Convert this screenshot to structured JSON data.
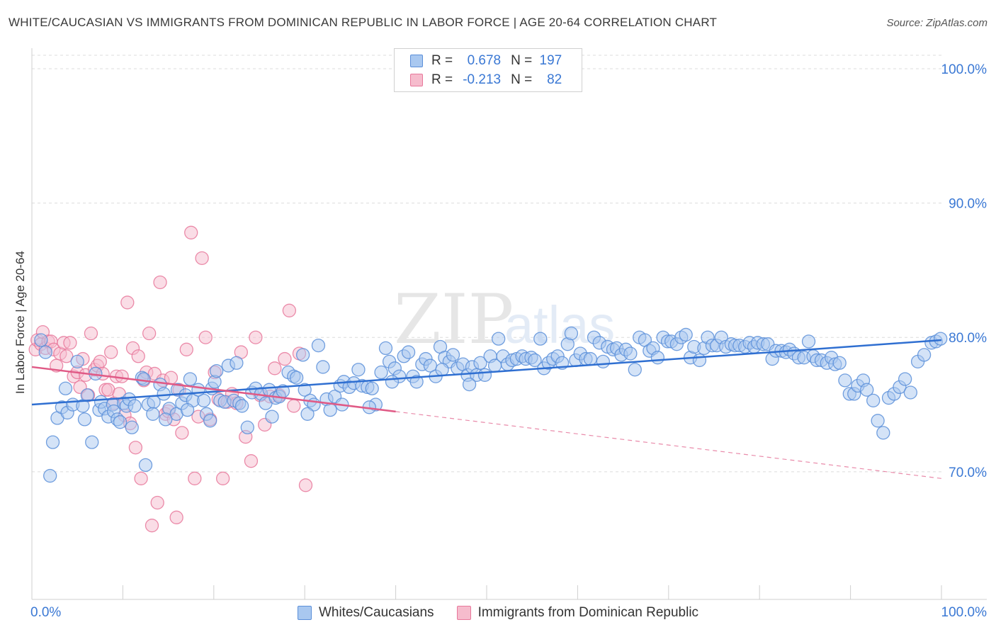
{
  "header": {
    "title": "WHITE/CAUCASIAN VS IMMIGRANTS FROM DOMINICAN REPUBLIC IN LABOR FORCE | AGE 20-64 CORRELATION CHART",
    "source": "Source: ZipAtlas.com"
  },
  "watermark": {
    "text_zip": "ZIP",
    "text_atlas": "atlas"
  },
  "legend": {
    "r_label": "R =",
    "n_label": "N =",
    "rows": [
      {
        "r": "0.678",
        "n": "197"
      },
      {
        "r": "-0.213",
        "n": "82"
      }
    ]
  },
  "colors": {
    "blue_fill": "#a9c8f0",
    "blue_edge": "#5b8fd9",
    "blue_line": "#2f6fd1",
    "pink_fill": "#f6bccd",
    "pink_edge": "#e8789b",
    "pink_line": "#e05a86",
    "tick_text": "#3a78d4",
    "grid": "#dcdcdc"
  },
  "chart_data": {
    "type": "scatter",
    "title": "WHITE/CAUCASIAN VS IMMIGRANTS FROM DOMINICAN REPUBLIC IN LABOR FORCE | AGE 20-64 CORRELATION CHART",
    "xlabel": "",
    "ylabel": "In Labor Force | Age 20-64",
    "xlim": [
      0,
      100
    ],
    "ylim": [
      60.5,
      101
    ],
    "x_tick_labels": [
      "0.0%",
      "100.0%"
    ],
    "y_ticks": [
      70,
      80,
      90,
      100
    ],
    "y_tick_labels": [
      "70.0%",
      "80.0%",
      "90.0%",
      "100.0%"
    ],
    "grid": true,
    "legend_position": "top-center",
    "series": [
      {
        "name": "Whites/Caucasians",
        "r": 0.678,
        "n": 197,
        "trend": {
          "x0": 0,
          "y0": 75.0,
          "x1": 100,
          "y1": 79.8,
          "dashed_from": null
        },
        "points": [
          [
            2,
            69.7
          ],
          [
            2.3,
            72.2
          ],
          [
            2.8,
            74
          ],
          [
            3.3,
            74.8
          ],
          [
            3.9,
            74.4
          ],
          [
            4.5,
            75
          ],
          [
            5,
            78.2
          ],
          [
            5.6,
            74.9
          ],
          [
            5.8,
            73.9
          ],
          [
            6.6,
            72.2
          ],
          [
            7,
            77.3
          ],
          [
            7.4,
            74.6
          ],
          [
            7.6,
            75.2
          ],
          [
            8,
            74.7
          ],
          [
            8.4,
            74.1
          ],
          [
            8.9,
            75
          ],
          [
            9,
            74.5
          ],
          [
            9.4,
            73.9
          ],
          [
            10.1,
            75.1
          ],
          [
            10.4,
            74.9
          ],
          [
            10.7,
            75.4
          ],
          [
            11,
            73.3
          ],
          [
            11.3,
            74.9
          ],
          [
            12.1,
            77
          ],
          [
            12.5,
            70.5
          ],
          [
            12.8,
            75
          ],
          [
            13.4,
            75.2
          ],
          [
            13.3,
            74.3
          ],
          [
            14.1,
            76.5
          ],
          [
            14.5,
            75.8
          ],
          [
            15.1,
            74.7
          ],
          [
            15.9,
            74.3
          ],
          [
            16,
            76.1
          ],
          [
            16.5,
            75.1
          ],
          [
            16.9,
            75.7
          ],
          [
            17.4,
            76.9
          ],
          [
            17.7,
            75.3
          ],
          [
            18.3,
            76.1
          ],
          [
            18.9,
            75.3
          ],
          [
            19.2,
            74.3
          ],
          [
            19.8,
            76.2
          ],
          [
            20.1,
            76.7
          ],
          [
            20.3,
            77.5
          ],
          [
            20.7,
            75.3
          ],
          [
            21.2,
            75.2
          ],
          [
            21.6,
            77.9
          ],
          [
            22.2,
            75.3
          ],
          [
            22.8,
            75.1
          ],
          [
            23.1,
            74.9
          ],
          [
            23.7,
            73.3
          ],
          [
            24.2,
            75.9
          ],
          [
            24.6,
            76.2
          ],
          [
            25.2,
            75.8
          ],
          [
            25.7,
            75.1
          ],
          [
            26.1,
            76.1
          ],
          [
            26.8,
            75.5
          ],
          [
            27.2,
            75.6
          ],
          [
            27.6,
            76
          ],
          [
            28.2,
            77.4
          ],
          [
            28.8,
            77.1
          ],
          [
            29.1,
            77
          ],
          [
            29.8,
            78.7
          ],
          [
            30,
            76.1
          ],
          [
            30.6,
            75.3
          ],
          [
            31,
            75
          ],
          [
            31.5,
            79.4
          ],
          [
            32,
            77.8
          ],
          [
            32.4,
            75.4
          ],
          [
            32.8,
            74.6
          ],
          [
            33.3,
            75.6
          ],
          [
            33.9,
            76.4
          ],
          [
            34.3,
            76.7
          ],
          [
            34.9,
            76.3
          ],
          [
            35.4,
            76.6
          ],
          [
            35.9,
            77.6
          ],
          [
            36.3,
            76.4
          ],
          [
            36.9,
            76.3
          ],
          [
            37.4,
            76.2
          ],
          [
            37.8,
            75
          ],
          [
            38.4,
            77.4
          ],
          [
            38.9,
            79.2
          ],
          [
            39.3,
            78.2
          ],
          [
            39.9,
            77.7
          ],
          [
            40.4,
            77.1
          ],
          [
            40.9,
            78.6
          ],
          [
            41.4,
            78.9
          ],
          [
            41.9,
            77.1
          ],
          [
            42.3,
            76.7
          ],
          [
            42.9,
            78
          ],
          [
            43.3,
            78.4
          ],
          [
            43.8,
            77.9
          ],
          [
            44.4,
            77.1
          ],
          [
            44.9,
            79.3
          ],
          [
            45.4,
            78.5
          ],
          [
            45.9,
            78.2
          ],
          [
            46.3,
            78.7
          ],
          [
            46.8,
            77.7
          ],
          [
            47.4,
            78
          ],
          [
            47.9,
            77.2
          ],
          [
            48.4,
            77.8
          ],
          [
            48.9,
            77.2
          ],
          [
            49.3,
            78.1
          ],
          [
            49.8,
            77.2
          ],
          [
            50.4,
            78.6
          ],
          [
            50.9,
            77.9
          ],
          [
            51.3,
            79.9
          ],
          [
            51.8,
            78.6
          ],
          [
            52.3,
            78
          ],
          [
            52.8,
            78.3
          ],
          [
            53.3,
            78.4
          ],
          [
            53.9,
            78.6
          ],
          [
            54.3,
            78.4
          ],
          [
            54.9,
            78.5
          ],
          [
            55.3,
            78.3
          ],
          [
            55.9,
            79.9
          ],
          [
            56.3,
            77.7
          ],
          [
            56.8,
            78.1
          ],
          [
            57.3,
            78.4
          ],
          [
            57.8,
            78.6
          ],
          [
            58.3,
            78.1
          ],
          [
            58.9,
            79.5
          ],
          [
            59.3,
            80.3
          ],
          [
            59.8,
            78.3
          ],
          [
            60.3,
            78.8
          ],
          [
            60.9,
            78.4
          ],
          [
            61.4,
            78.4
          ],
          [
            61.8,
            80
          ],
          [
            62.4,
            79.6
          ],
          [
            62.8,
            78.2
          ],
          [
            63.3,
            79.3
          ],
          [
            63.9,
            79.1
          ],
          [
            64.3,
            79.2
          ],
          [
            64.8,
            78.7
          ],
          [
            65.3,
            79.1
          ],
          [
            65.8,
            78.8
          ],
          [
            66.3,
            77.6
          ],
          [
            66.8,
            80
          ],
          [
            67.4,
            79.8
          ],
          [
            67.9,
            79
          ],
          [
            68.3,
            79.2
          ],
          [
            68.8,
            78.5
          ],
          [
            69.4,
            80
          ],
          [
            69.9,
            79.7
          ],
          [
            70.3,
            79.7
          ],
          [
            70.9,
            79.5
          ],
          [
            71.4,
            80
          ],
          [
            71.9,
            80.2
          ],
          [
            72.4,
            78.5
          ],
          [
            72.8,
            79.3
          ],
          [
            73.4,
            78.3
          ],
          [
            73.9,
            79.2
          ],
          [
            74.3,
            80
          ],
          [
            74.8,
            79.4
          ],
          [
            75.3,
            79.4
          ],
          [
            75.8,
            80
          ],
          [
            76.3,
            79.3
          ],
          [
            76.9,
            79.5
          ],
          [
            77.3,
            79.4
          ],
          [
            77.8,
            79.4
          ],
          [
            78.4,
            79.3
          ],
          [
            78.9,
            79.6
          ],
          [
            79.4,
            79.3
          ],
          [
            79.8,
            79.6
          ],
          [
            80.4,
            79.5
          ],
          [
            80.9,
            79.5
          ],
          [
            81.4,
            78.4
          ],
          [
            81.8,
            79
          ],
          [
            82.4,
            79
          ],
          [
            82.9,
            78.9
          ],
          [
            83.3,
            79.1
          ],
          [
            83.8,
            78.8
          ],
          [
            84.3,
            78.5
          ],
          [
            84.9,
            78.5
          ],
          [
            85.4,
            79.7
          ],
          [
            85.9,
            78.6
          ],
          [
            86.3,
            78.3
          ],
          [
            86.8,
            78.3
          ],
          [
            87.4,
            78.1
          ],
          [
            87.9,
            78.5
          ],
          [
            88.3,
            78
          ],
          [
            88.8,
            78.1
          ],
          [
            89.4,
            76.8
          ],
          [
            89.9,
            75.8
          ],
          [
            90.4,
            75.8
          ],
          [
            90.8,
            76.4
          ],
          [
            91.4,
            76.8
          ],
          [
            91.8,
            76.1
          ],
          [
            92.5,
            75.3
          ],
          [
            93,
            73.8
          ],
          [
            93.6,
            72.9
          ],
          [
            94.2,
            75.5
          ],
          [
            94.8,
            75.8
          ],
          [
            95.4,
            76.3
          ],
          [
            96,
            76.9
          ],
          [
            96.6,
            75.9
          ],
          [
            97.4,
            78.2
          ],
          [
            98.1,
            78.7
          ],
          [
            98.9,
            79.6
          ],
          [
            99.4,
            79.7
          ],
          [
            99.9,
            79.9
          ],
          [
            1,
            79.8
          ],
          [
            1.5,
            78.9
          ],
          [
            3.7,
            76.2
          ],
          [
            6.1,
            75.7
          ],
          [
            9.7,
            73.7
          ],
          [
            12.3,
            76.9
          ],
          [
            14.7,
            73.9
          ],
          [
            17.1,
            74.6
          ],
          [
            19.6,
            73.8
          ],
          [
            22.5,
            78.1
          ],
          [
            26.4,
            74.1
          ],
          [
            30.3,
            74.3
          ],
          [
            34.1,
            75
          ],
          [
            37.1,
            74.8
          ],
          [
            39.6,
            76.7
          ],
          [
            45.1,
            77.6
          ],
          [
            48.1,
            76.5
          ]
        ]
      },
      {
        "name": "Immigrants from Dominican Republic",
        "r": -0.213,
        "n": 82,
        "trend": {
          "x0": 0,
          "y0": 77.8,
          "x1": 100,
          "y1": 69.5,
          "dashed_from": 40
        },
        "points": [
          [
            0.4,
            79.1
          ],
          [
            0.6,
            79.8
          ],
          [
            1,
            79.5
          ],
          [
            1.2,
            80.4
          ],
          [
            1.5,
            79.2
          ],
          [
            1.8,
            79.7
          ],
          [
            2.1,
            79.7
          ],
          [
            2.4,
            79.1
          ],
          [
            2.7,
            77.9
          ],
          [
            3.1,
            78.8
          ],
          [
            3.5,
            79.6
          ],
          [
            3.8,
            78.6
          ],
          [
            4.2,
            79.6
          ],
          [
            4.6,
            77.1
          ],
          [
            5,
            77.4
          ],
          [
            5.3,
            76.3
          ],
          [
            5.6,
            78.4
          ],
          [
            5.9,
            77.2
          ],
          [
            6.2,
            75.7
          ],
          [
            6.5,
            80.3
          ],
          [
            6.9,
            77.6
          ],
          [
            7.2,
            77.9
          ],
          [
            7.5,
            78.2
          ],
          [
            7.8,
            77.3
          ],
          [
            8.1,
            76.1
          ],
          [
            8.4,
            76.1
          ],
          [
            8.7,
            78.9
          ],
          [
            9,
            75.1
          ],
          [
            9.3,
            77.1
          ],
          [
            9.6,
            75.8
          ],
          [
            9.9,
            77.1
          ],
          [
            10.2,
            74.2
          ],
          [
            10.5,
            82.6
          ],
          [
            10.8,
            73.6
          ],
          [
            11.1,
            79.2
          ],
          [
            11.4,
            71.8
          ],
          [
            11.7,
            78.6
          ],
          [
            12,
            69.5
          ],
          [
            12.3,
            76.8
          ],
          [
            12.6,
            77.4
          ],
          [
            12.9,
            80.3
          ],
          [
            13.2,
            66
          ],
          [
            13.5,
            77.3
          ],
          [
            13.8,
            67.7
          ],
          [
            14.1,
            84.1
          ],
          [
            14.4,
            76.8
          ],
          [
            14.7,
            74.3
          ],
          [
            15,
            74.5
          ],
          [
            15.3,
            77
          ],
          [
            15.6,
            73.9
          ],
          [
            15.9,
            66.6
          ],
          [
            16.2,
            76.1
          ],
          [
            16.5,
            72.9
          ],
          [
            17,
            79.1
          ],
          [
            17.5,
            87.8
          ],
          [
            17.9,
            69.5
          ],
          [
            18.3,
            74.1
          ],
          [
            18.7,
            85.9
          ],
          [
            19.1,
            80
          ],
          [
            19.6,
            73.9
          ],
          [
            20.1,
            77.4
          ],
          [
            20.5,
            75.4
          ],
          [
            21,
            69.5
          ],
          [
            21.5,
            75.2
          ],
          [
            22,
            75.8
          ],
          [
            22.5,
            75.1
          ],
          [
            23,
            78.9
          ],
          [
            23.5,
            72.6
          ],
          [
            24.1,
            70.8
          ],
          [
            24.6,
            80
          ],
          [
            25.1,
            75.7
          ],
          [
            25.6,
            73.5
          ],
          [
            26.2,
            75.6
          ],
          [
            26.7,
            77.7
          ],
          [
            27.2,
            75.7
          ],
          [
            27.8,
            78.4
          ],
          [
            28.3,
            82
          ],
          [
            28.8,
            74.9
          ],
          [
            29.4,
            78.8
          ],
          [
            30.1,
            69
          ]
        ]
      }
    ]
  }
}
